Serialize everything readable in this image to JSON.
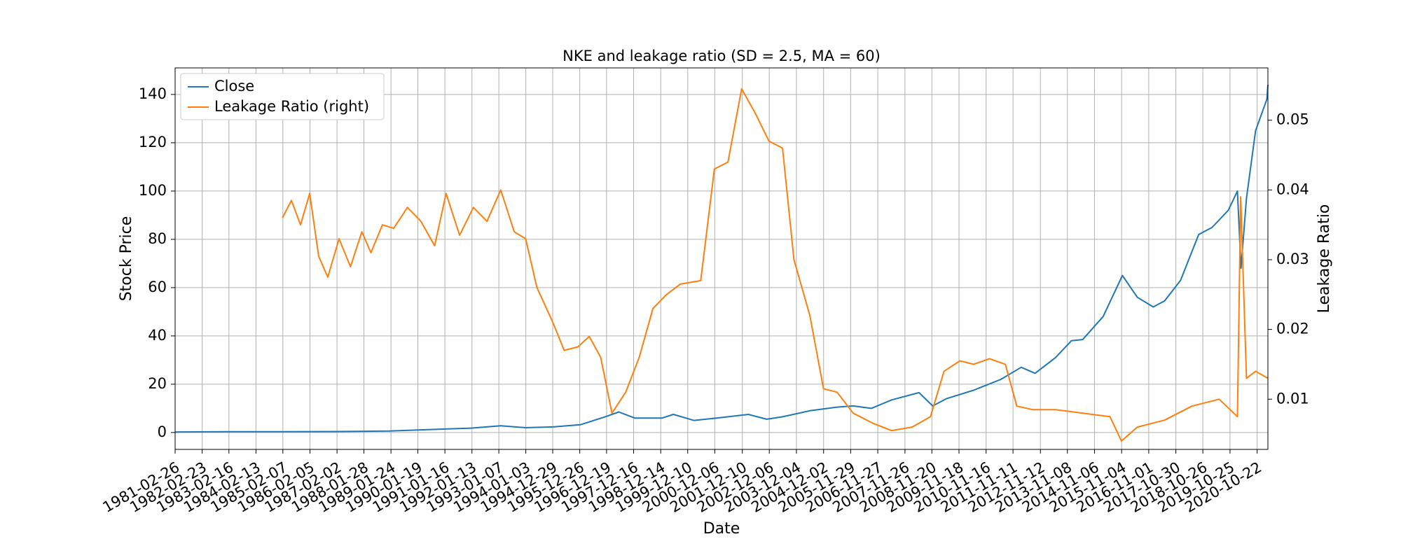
{
  "chart_data": {
    "type": "line",
    "title": "NKE and leakage ratio (SD = 2.5, MA = 60)",
    "xlabel": "Date",
    "ylabel": "Stock Price",
    "ylabel_right": "Leakage Ratio",
    "xlim": [
      "1981-02-26",
      "2021-03-15"
    ],
    "ylim": [
      -7,
      151
    ],
    "ylim_right": [
      0.0028,
      0.0575
    ],
    "yticks": [
      0,
      20,
      40,
      60,
      80,
      100,
      120,
      140
    ],
    "yticks_right": [
      0.01,
      0.02,
      0.03,
      0.04,
      0.05
    ],
    "ytick_labels_right": [
      "0.01",
      "0.02",
      "0.03",
      "0.04",
      "0.05"
    ],
    "xtick_labels": [
      "1981-02-26",
      "1982-02-23",
      "1983-02-16",
      "1984-02-13",
      "1985-02-07",
      "1986-02-05",
      "1987-02-02",
      "1988-01-28",
      "1989-01-24",
      "1990-01-19",
      "1991-01-16",
      "1992-01-13",
      "1993-01-07",
      "1994-01-03",
      "1994-12-29",
      "1995-12-26",
      "1996-12-19",
      "1997-12-16",
      "1998-12-14",
      "1999-12-10",
      "2000-12-06",
      "2001-12-10",
      "2002-12-06",
      "2003-12-04",
      "2004-12-02",
      "2005-11-29",
      "2006-11-27",
      "2007-11-26",
      "2008-11-20",
      "2009-11-18",
      "2010-11-16",
      "2011-11-11",
      "2012-11-12",
      "2013-11-08",
      "2014-11-06",
      "2015-11-04",
      "2016-11-01",
      "2017-10-30",
      "2018-10-26",
      "2019-10-25",
      "2020-10-22"
    ],
    "grid": true,
    "legend": {
      "placement": "top-left",
      "entries": [
        "Close",
        "Leakage Ratio (right)"
      ]
    },
    "series": [
      {
        "name": "Close",
        "axis": "left",
        "color": "#1f77b4",
        "points": [
          [
            "1981-02-26",
            0.2
          ],
          [
            "1983-01-01",
            0.3
          ],
          [
            "1985-01-01",
            0.3
          ],
          [
            "1987-01-01",
            0.4
          ],
          [
            "1989-01-01",
            0.6
          ],
          [
            "1990-06-01",
            1.2
          ],
          [
            "1992-01-01",
            1.8
          ],
          [
            "1993-02-01",
            2.8
          ],
          [
            "1994-01-01",
            2.0
          ],
          [
            "1995-01-01",
            2.3
          ],
          [
            "1996-01-01",
            3.2
          ],
          [
            "1996-12-01",
            6.5
          ],
          [
            "1997-06-01",
            8.5
          ],
          [
            "1998-01-01",
            6.0
          ],
          [
            "1999-01-01",
            6.0
          ],
          [
            "1999-06-01",
            7.5
          ],
          [
            "2000-03-01",
            5.0
          ],
          [
            "2001-01-01",
            6.0
          ],
          [
            "2001-06-01",
            6.5
          ],
          [
            "2002-03-01",
            7.5
          ],
          [
            "2002-11-01",
            5.5
          ],
          [
            "2003-06-01",
            6.5
          ],
          [
            "2004-06-01",
            9.0
          ],
          [
            "2005-06-01",
            10.5
          ],
          [
            "2006-01-01",
            11.0
          ],
          [
            "2006-09-01",
            10.0
          ],
          [
            "2007-06-01",
            13.5
          ],
          [
            "2008-06-01",
            16.5
          ],
          [
            "2008-12-01",
            11.0
          ],
          [
            "2009-06-01",
            14.0
          ],
          [
            "2010-06-01",
            17.5
          ],
          [
            "2011-06-01",
            22.0
          ],
          [
            "2012-03-01",
            27.0
          ],
          [
            "2012-09-01",
            24.5
          ],
          [
            "2013-06-01",
            31.0
          ],
          [
            "2014-01-01",
            38.0
          ],
          [
            "2014-06-01",
            38.5
          ],
          [
            "2015-03-01",
            48.0
          ],
          [
            "2015-11-15",
            65.0
          ],
          [
            "2016-06-01",
            56.0
          ],
          [
            "2017-01-01",
            52.0
          ],
          [
            "2017-06-01",
            54.5
          ],
          [
            "2018-01-01",
            63.0
          ],
          [
            "2018-09-01",
            82.0
          ],
          [
            "2019-03-01",
            85.0
          ],
          [
            "2019-10-01",
            92.0
          ],
          [
            "2020-02-01",
            100.0
          ],
          [
            "2020-03-20",
            68.0
          ],
          [
            "2020-06-01",
            97.0
          ],
          [
            "2020-10-01",
            125.0
          ],
          [
            "2021-03-01",
            138.0
          ],
          [
            "2021-03-15",
            144.0
          ]
        ]
      },
      {
        "name": "Leakage Ratio (right)",
        "axis": "right",
        "color": "#ff7f0e",
        "points": [
          [
            "1985-02-01",
            0.036
          ],
          [
            "1985-06-01",
            0.0385
          ],
          [
            "1985-10-01",
            0.035
          ],
          [
            "1986-02-01",
            0.0395
          ],
          [
            "1986-06-01",
            0.0305
          ],
          [
            "1986-10-01",
            0.0275
          ],
          [
            "1987-03-01",
            0.033
          ],
          [
            "1987-08-01",
            0.029
          ],
          [
            "1988-01-01",
            0.034
          ],
          [
            "1988-05-01",
            0.031
          ],
          [
            "1988-10-01",
            0.035
          ],
          [
            "1989-03-01",
            0.0345
          ],
          [
            "1989-09-01",
            0.0375
          ],
          [
            "1990-03-01",
            0.0355
          ],
          [
            "1990-09-01",
            0.032
          ],
          [
            "1991-02-01",
            0.0395
          ],
          [
            "1991-08-01",
            0.0335
          ],
          [
            "1992-02-01",
            0.0375
          ],
          [
            "1992-08-01",
            0.0355
          ],
          [
            "1993-02-01",
            0.04
          ],
          [
            "1993-08-01",
            0.034
          ],
          [
            "1994-01-01",
            0.033
          ],
          [
            "1994-06-01",
            0.026
          ],
          [
            "1995-01-01",
            0.021
          ],
          [
            "1995-06-01",
            0.017
          ],
          [
            "1995-12-01",
            0.0175
          ],
          [
            "1996-05-01",
            0.019
          ],
          [
            "1996-10-01",
            0.016
          ],
          [
            "1997-03-01",
            0.008
          ],
          [
            "1997-09-01",
            0.011
          ],
          [
            "1998-03-01",
            0.016
          ],
          [
            "1998-09-01",
            0.023
          ],
          [
            "1999-03-01",
            0.025
          ],
          [
            "1999-09-01",
            0.0265
          ],
          [
            "2000-06-01",
            0.027
          ],
          [
            "2000-12-01",
            0.043
          ],
          [
            "2001-06-01",
            0.044
          ],
          [
            "2001-12-01",
            0.0545
          ],
          [
            "2002-06-01",
            0.051
          ],
          [
            "2002-12-01",
            0.047
          ],
          [
            "2003-06-01",
            0.046
          ],
          [
            "2003-11-01",
            0.03
          ],
          [
            "2004-06-01",
            0.022
          ],
          [
            "2004-12-01",
            0.0115
          ],
          [
            "2005-06-01",
            0.011
          ],
          [
            "2006-01-01",
            0.008
          ],
          [
            "2006-10-01",
            0.0065
          ],
          [
            "2007-06-01",
            0.0055
          ],
          [
            "2008-03-01",
            0.006
          ],
          [
            "2008-11-01",
            0.0075
          ],
          [
            "2009-05-01",
            0.014
          ],
          [
            "2009-12-01",
            0.0155
          ],
          [
            "2010-06-01",
            0.015
          ],
          [
            "2011-01-01",
            0.0158
          ],
          [
            "2011-08-01",
            0.015
          ],
          [
            "2012-01-01",
            0.009
          ],
          [
            "2012-08-01",
            0.0085
          ],
          [
            "2013-06-01",
            0.0085
          ],
          [
            "2014-06-01",
            0.008
          ],
          [
            "2015-06-01",
            0.0075
          ],
          [
            "2015-11-01",
            0.004
          ],
          [
            "2016-06-01",
            0.006
          ],
          [
            "2017-06-01",
            0.007
          ],
          [
            "2018-06-01",
            0.009
          ],
          [
            "2019-06-01",
            0.01
          ],
          [
            "2020-02-01",
            0.0075
          ],
          [
            "2020-03-15",
            0.039
          ],
          [
            "2020-06-01",
            0.013
          ],
          [
            "2020-10-01",
            0.014
          ],
          [
            "2021-03-15",
            0.013
          ]
        ]
      }
    ]
  }
}
